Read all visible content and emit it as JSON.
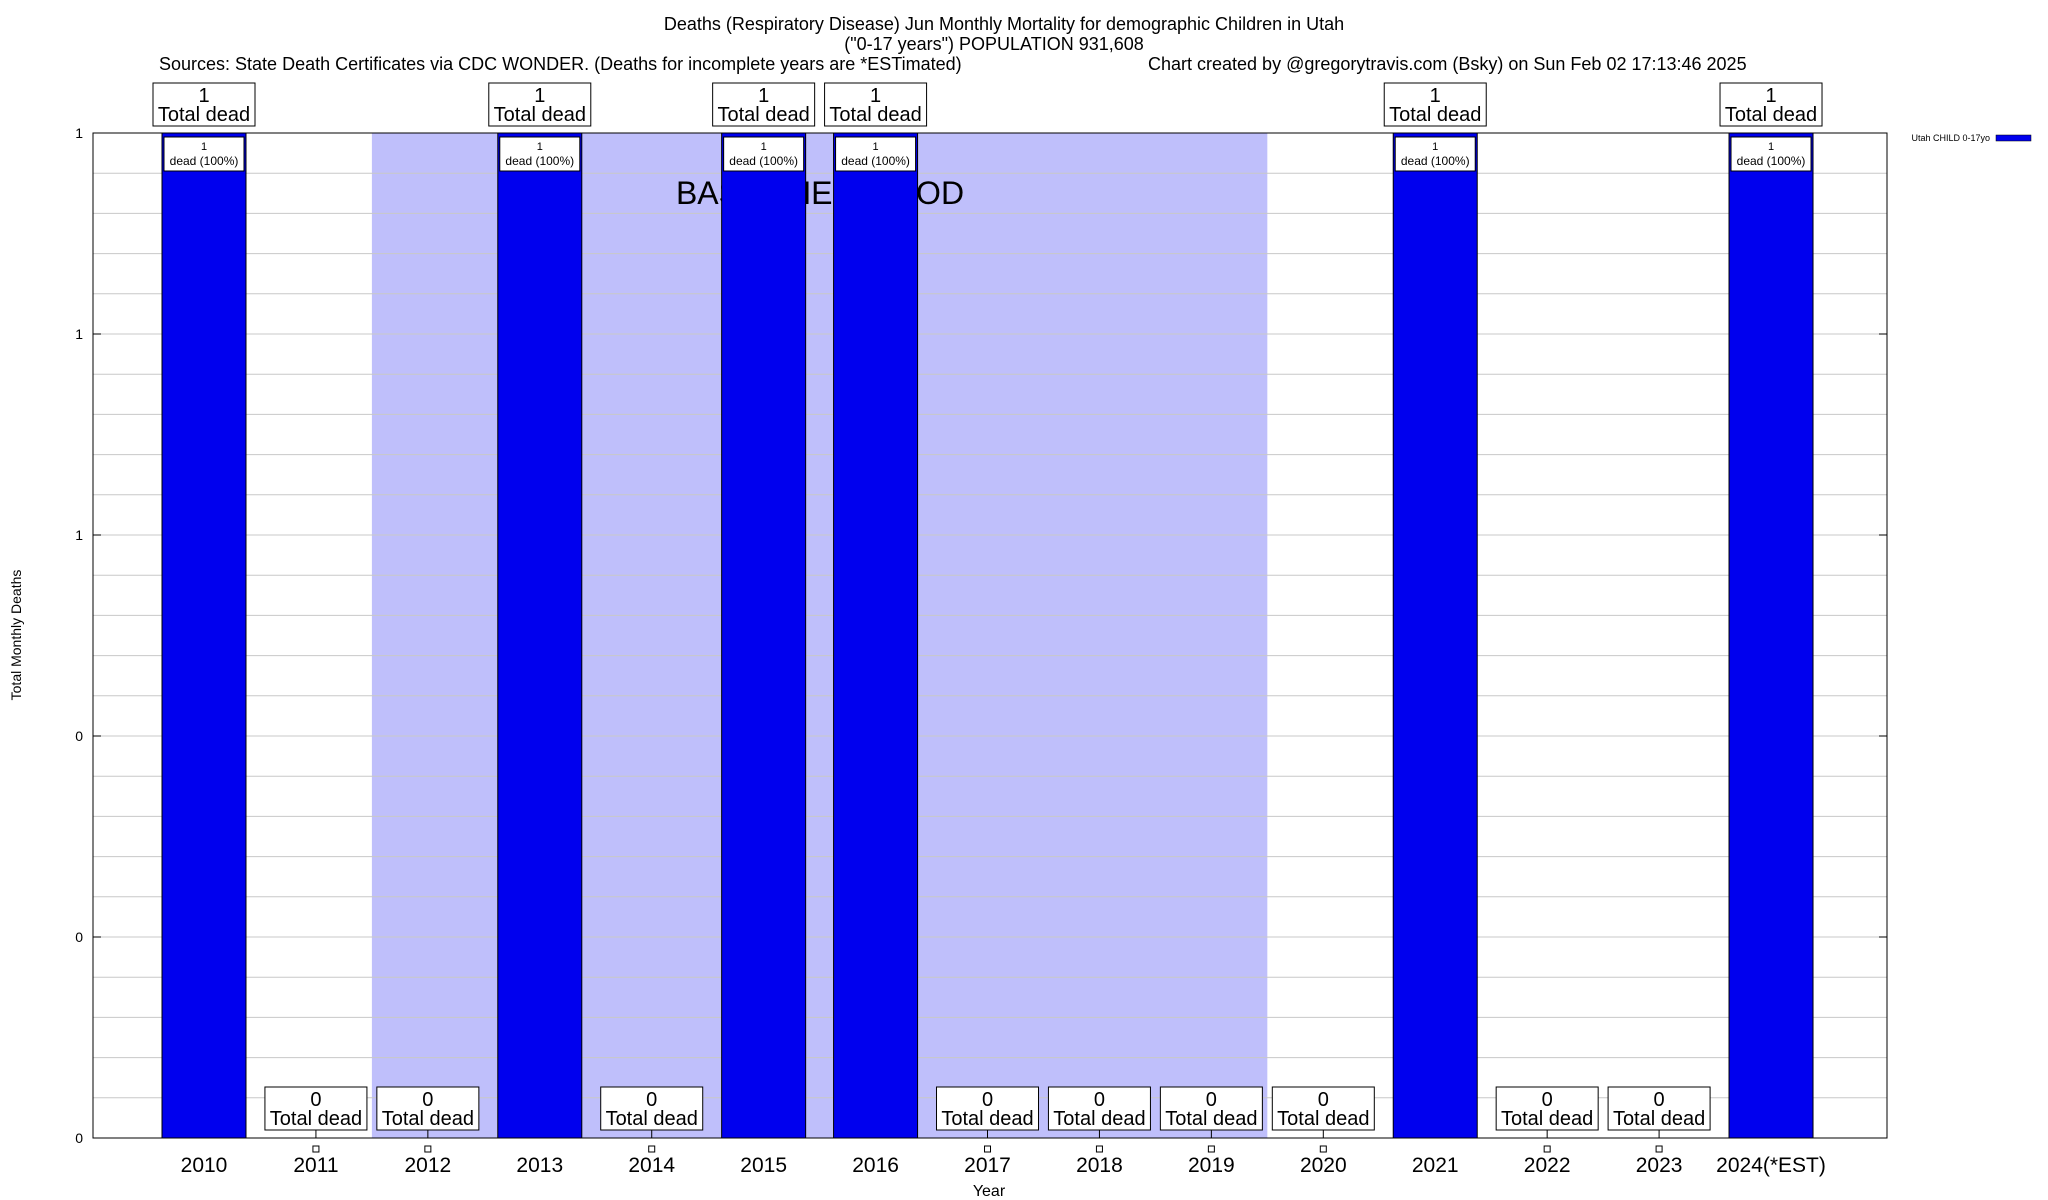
{
  "title": {
    "line1": "Deaths (Respiratory Disease) Jun Monthly Mortality for demographic Children in Utah",
    "line2": "(\"0-17 years\") POPULATION 931,608"
  },
  "subtitle": {
    "sources": "Sources: State Death Certificates via CDC WONDER. (Deaths for incomplete years are *ESTimated)",
    "credit": "Chart created by @gregorytravis.com (Bsky) on Sun Feb 02 17:13:46 2025"
  },
  "chart_data": {
    "type": "bar",
    "title": "Deaths (Respiratory Disease) Jun Monthly Mortality for demographic Children in Utah (\"0-17 years\") POPULATION 931,608",
    "xlabel": "Year",
    "ylabel": "Total Monthly Deaths",
    "categories": [
      "2010",
      "2011",
      "2012",
      "2013",
      "2014",
      "2015",
      "2016",
      "2017",
      "2018",
      "2019",
      "2020",
      "2021",
      "2022",
      "2023",
      "2024(*EST)"
    ],
    "series": [
      {
        "name": "Utah CHILD 0-17yo",
        "color": "#0000ee",
        "values": [
          1,
          0,
          0,
          1,
          0,
          1,
          1,
          0,
          0,
          0,
          0,
          1,
          0,
          0,
          1
        ]
      }
    ],
    "ylim": [
      0,
      1
    ],
    "y_tick_labels": [
      "0",
      "0",
      "0",
      "1",
      "1",
      "1"
    ],
    "total_label_text": "Total dead",
    "bar_label_text": "dead (100%)",
    "baseline_label": "BASELINE PERIOD",
    "baseline_color": "#bfbffb",
    "shaded_regions": [
      {
        "from_index": 2,
        "to_index": 9,
        "label": "BASELINE PERIOD"
      }
    ],
    "grid": true,
    "legend_position": "top-right"
  }
}
